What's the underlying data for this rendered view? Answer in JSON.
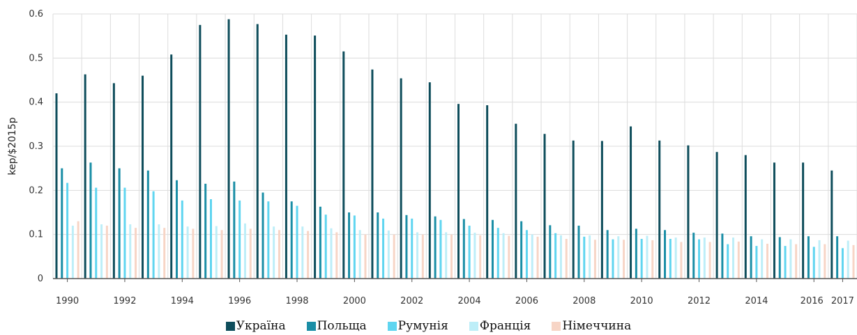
{
  "chart_data": {
    "type": "bar",
    "ylabel": "kep/$2015p",
    "ylim": [
      0,
      0.6
    ],
    "yticks": [
      0,
      0.1,
      0.2,
      0.3,
      0.4,
      0.5,
      0.6
    ],
    "grid": true,
    "legend_position": "bottom",
    "x_tick_labels": [
      "1990",
      "1992",
      "1994",
      "1996",
      "1998",
      "2000",
      "2002",
      "2004",
      "2006",
      "2008",
      "2010",
      "2012",
      "2014",
      "2016",
      "2017"
    ],
    "categories": [
      "1990",
      "1991",
      "1992",
      "1993",
      "1994",
      "1995",
      "1996",
      "1997",
      "1998",
      "1999",
      "2000",
      "2001",
      "2002",
      "2003",
      "2004",
      "2005",
      "2006",
      "2007",
      "2008",
      "2009",
      "2010",
      "2011",
      "2012",
      "2013",
      "2014",
      "2015",
      "2016",
      "2017"
    ],
    "series": [
      {
        "name": "Україна",
        "color": "#0e4d5b",
        "values": [
          0.42,
          0.463,
          0.443,
          0.46,
          0.508,
          0.575,
          0.588,
          0.577,
          0.553,
          0.551,
          0.515,
          0.474,
          0.454,
          0.445,
          0.396,
          0.393,
          0.351,
          0.328,
          0.313,
          0.312,
          0.345,
          0.313,
          0.302,
          0.287,
          0.28,
          0.263,
          0.263,
          0.245
        ]
      },
      {
        "name": "Польща",
        "color": "#1a8ea6",
        "values": [
          0.25,
          0.263,
          0.25,
          0.245,
          0.223,
          0.215,
          0.22,
          0.195,
          0.175,
          0.163,
          0.15,
          0.15,
          0.144,
          0.141,
          0.135,
          0.133,
          0.13,
          0.121,
          0.12,
          0.11,
          0.113,
          0.11,
          0.104,
          0.102,
          0.096,
          0.094,
          0.096,
          0.096
        ]
      },
      {
        "name": "Румунія",
        "color": "#5fd5f0",
        "values": [
          0.217,
          0.206,
          0.206,
          0.198,
          0.177,
          0.18,
          0.177,
          0.175,
          0.165,
          0.145,
          0.143,
          0.136,
          0.136,
          0.133,
          0.12,
          0.115,
          0.11,
          0.103,
          0.095,
          0.089,
          0.09,
          0.09,
          0.089,
          0.078,
          0.074,
          0.074,
          0.072,
          0.069
        ]
      },
      {
        "name": "Франція",
        "color": "#bdeef8",
        "values": [
          0.12,
          0.123,
          0.123,
          0.123,
          0.118,
          0.119,
          0.125,
          0.118,
          0.118,
          0.114,
          0.11,
          0.109,
          0.105,
          0.105,
          0.104,
          0.103,
          0.1,
          0.098,
          0.098,
          0.096,
          0.097,
          0.093,
          0.093,
          0.093,
          0.089,
          0.089,
          0.087,
          0.086
        ]
      },
      {
        "name": "Німеччина",
        "color": "#f7d5c6",
        "values": [
          0.13,
          0.12,
          0.115,
          0.115,
          0.113,
          0.11,
          0.113,
          0.11,
          0.108,
          0.105,
          0.1,
          0.1,
          0.1,
          0.1,
          0.098,
          0.097,
          0.095,
          0.09,
          0.088,
          0.088,
          0.087,
          0.083,
          0.083,
          0.084,
          0.079,
          0.078,
          0.078,
          0.076
        ]
      }
    ]
  }
}
